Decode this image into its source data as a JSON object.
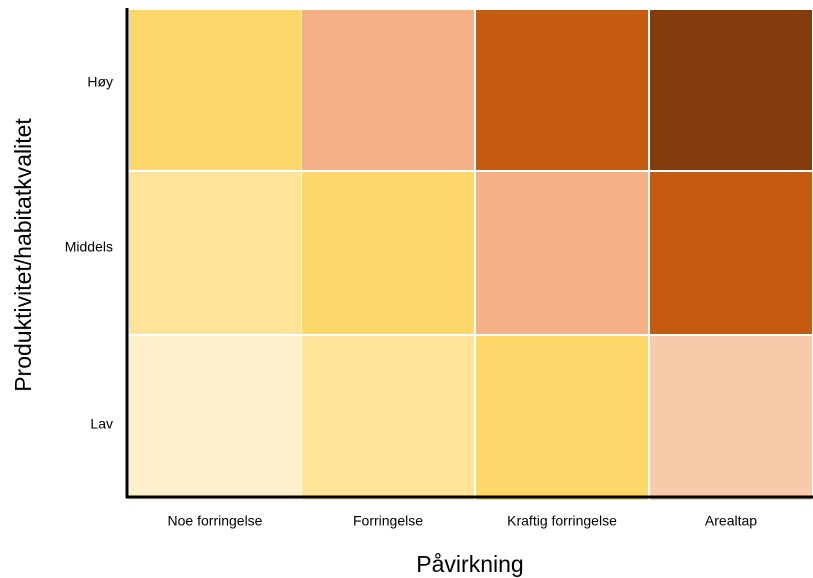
{
  "x_axis": {
    "title": "Påvirkning",
    "labels": [
      "Noe forringelse",
      "Forringelse",
      "Kraftig forringelse",
      "Arealtap"
    ]
  },
  "y_axis": {
    "title": "Produktivitet/habitatkvalitet",
    "labels": [
      "Høy",
      "Middels",
      "Lav"
    ]
  },
  "cells": [
    [
      "#fdd76a",
      "#f4b086",
      "#c55a11",
      "#843c0c"
    ],
    [
      "#fee398",
      "#fdd76a",
      "#f4b086",
      "#c55a11"
    ],
    [
      "#fff0cc",
      "#fee398",
      "#fdd76a",
      "#f8caaa"
    ]
  ]
}
